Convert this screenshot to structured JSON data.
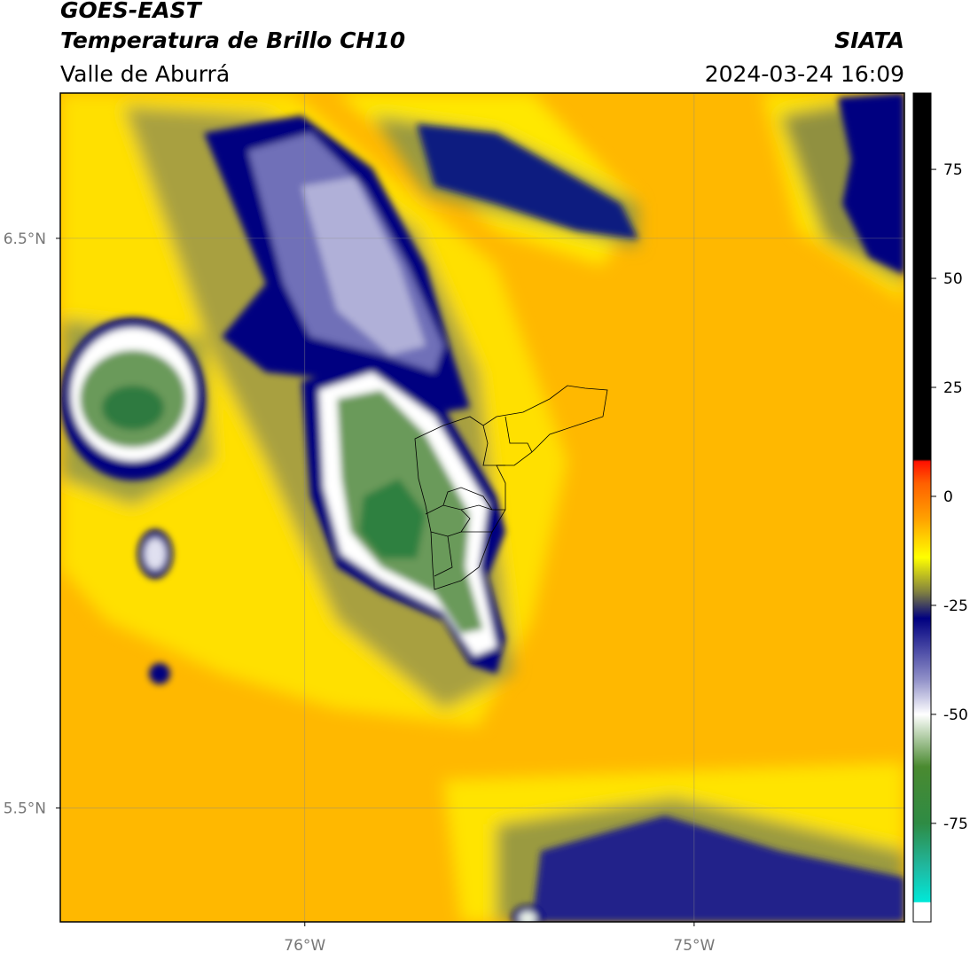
{
  "header": {
    "line1": "GOES-EAST",
    "line2": "Temperatura de Brillo CH10",
    "source": "SIATA",
    "region": "Valle de Aburrá",
    "datetime": "2024-03-24 16:09"
  },
  "map": {
    "xlim": [
      -76.628,
      -74.46
    ],
    "ylim": [
      5.3,
      6.755
    ],
    "xticks": [
      {
        "value": -76,
        "label": "76°W"
      },
      {
        "value": -75,
        "label": "75°W"
      }
    ],
    "yticks": [
      {
        "value": 6.5,
        "label": "6.5°N"
      },
      {
        "value": 5.5,
        "label": "5.5°N"
      }
    ]
  },
  "colorbar": {
    "lim": [
      -97.6,
      92.5
    ],
    "ticks": [
      75,
      50,
      25,
      0,
      -25,
      -50,
      -75
    ],
    "colormap": [
      {
        "value": -97.6,
        "color": "#ffffff"
      },
      {
        "value": -93.2,
        "color": "#ffffff"
      },
      {
        "value": -93,
        "color": "#00e8d8"
      },
      {
        "value": -85,
        "color": "#20b8a0"
      },
      {
        "value": -75,
        "color": "#2e8b44"
      },
      {
        "value": -62,
        "color": "#4a8a30"
      },
      {
        "value": -50,
        "color": "#ffffff"
      },
      {
        "value": -42,
        "color": "#9090c8"
      },
      {
        "value": -28,
        "color": "#000080"
      },
      {
        "value": -22,
        "color": "#808040"
      },
      {
        "value": -14,
        "color": "#ffff00"
      },
      {
        "value": -5,
        "color": "#ffa000"
      },
      {
        "value": 3,
        "color": "#ff6000"
      },
      {
        "value": 8,
        "color": "#ff1000"
      },
      {
        "value": 8.5,
        "color": "#000000"
      },
      {
        "value": 92.5,
        "color": "#000000"
      }
    ]
  }
}
